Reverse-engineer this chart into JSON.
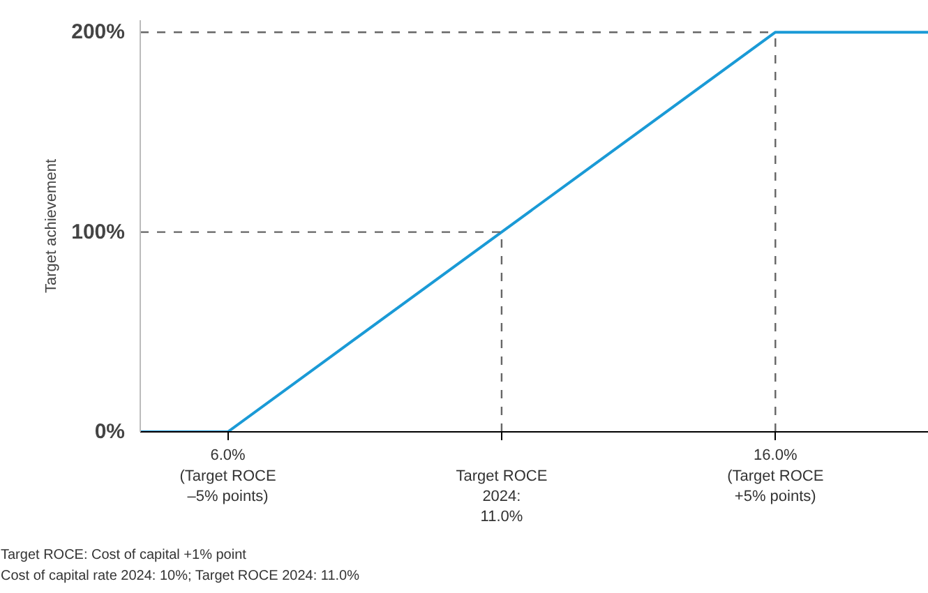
{
  "chart_data": {
    "type": "line",
    "ylabel": "Target achievement",
    "x": [
      4.4,
      6.0,
      11.0,
      16.0,
      18.8
    ],
    "series": [
      {
        "color": "#1a9ad6",
        "values": [
          0,
          0,
          100,
          200,
          200
        ]
      }
    ],
    "xlim": [
      4.4,
      18.8
    ],
    "ylim": [
      0,
      206
    ],
    "xticks": [
      {
        "value": 6.0,
        "label": "6.0%"
      },
      {
        "value": 11.0,
        "label": null
      },
      {
        "value": 16.0,
        "label": "16.0%"
      }
    ],
    "yticks": [
      {
        "value": 0,
        "label": "0%"
      },
      {
        "value": 100,
        "label": "100%"
      },
      {
        "value": 200,
        "label": "200%"
      }
    ],
    "ref_lines": [
      {
        "axis": "x",
        "value": 11.0,
        "color": "#666666",
        "line_style": "dashed"
      },
      {
        "axis": "y",
        "value": 100,
        "color": "#666666",
        "line_style": "dashed"
      },
      {
        "axis": "x",
        "value": 16.0,
        "color": "#666666",
        "line_style": "dashed"
      },
      {
        "axis": "y",
        "value": 200,
        "color": "#666666",
        "line_style": "dashed"
      }
    ],
    "annotations": [
      "(Target ROCE\n–5% points)",
      "Target ROCE\n2024:\n11.0%",
      "(Target ROCE\n+5% points)",
      "Target ROCE: Cost of capital +1% point",
      "Cost of capital rate 2024: 10%; Target ROCE 2024: 11.0%"
    ],
    "grid": false,
    "marker": "none",
    "line_style": "solid"
  }
}
